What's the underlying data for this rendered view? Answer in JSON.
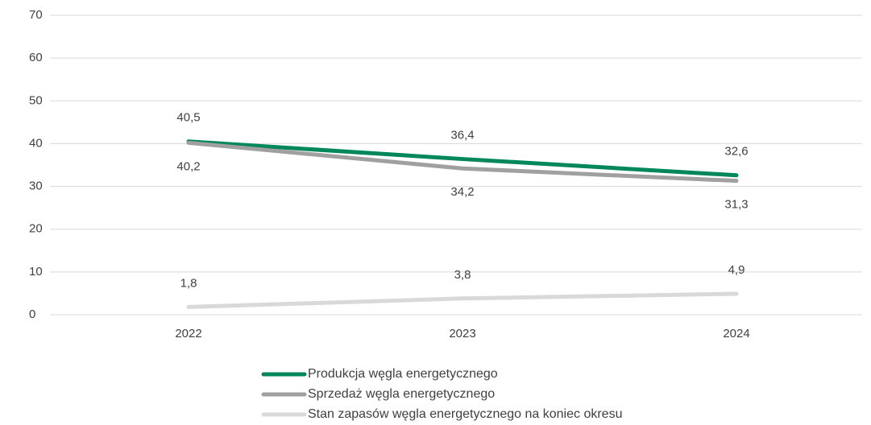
{
  "chart_data": {
    "type": "line",
    "categories": [
      "2022",
      "2023",
      "2024"
    ],
    "series": [
      {
        "name": "Produkcja węgla energetycznego",
        "color": "#00875a",
        "values": [
          40.5,
          36.4,
          32.6
        ],
        "value_labels": [
          "40,5",
          "36,4",
          "32,6"
        ],
        "label_position": "above"
      },
      {
        "name": "Sprzedaż węgla energetycznego",
        "color": "#a0a0a0",
        "values": [
          40.2,
          34.2,
          31.3
        ],
        "value_labels": [
          "40,2",
          "34,2",
          "31,3"
        ],
        "label_position": "below"
      },
      {
        "name": "Stan zapasów węgla energetycznego na koniec okresu",
        "color": "#d9d9d9",
        "values": [
          1.8,
          3.8,
          4.9
        ],
        "value_labels": [
          "1,8",
          "3,8",
          "4,9"
        ],
        "label_position": "above"
      }
    ],
    "ylim": [
      0,
      70
    ],
    "yticks": [
      0,
      10,
      20,
      30,
      40,
      50,
      60,
      70
    ],
    "grid": true,
    "legend": "bottom"
  }
}
